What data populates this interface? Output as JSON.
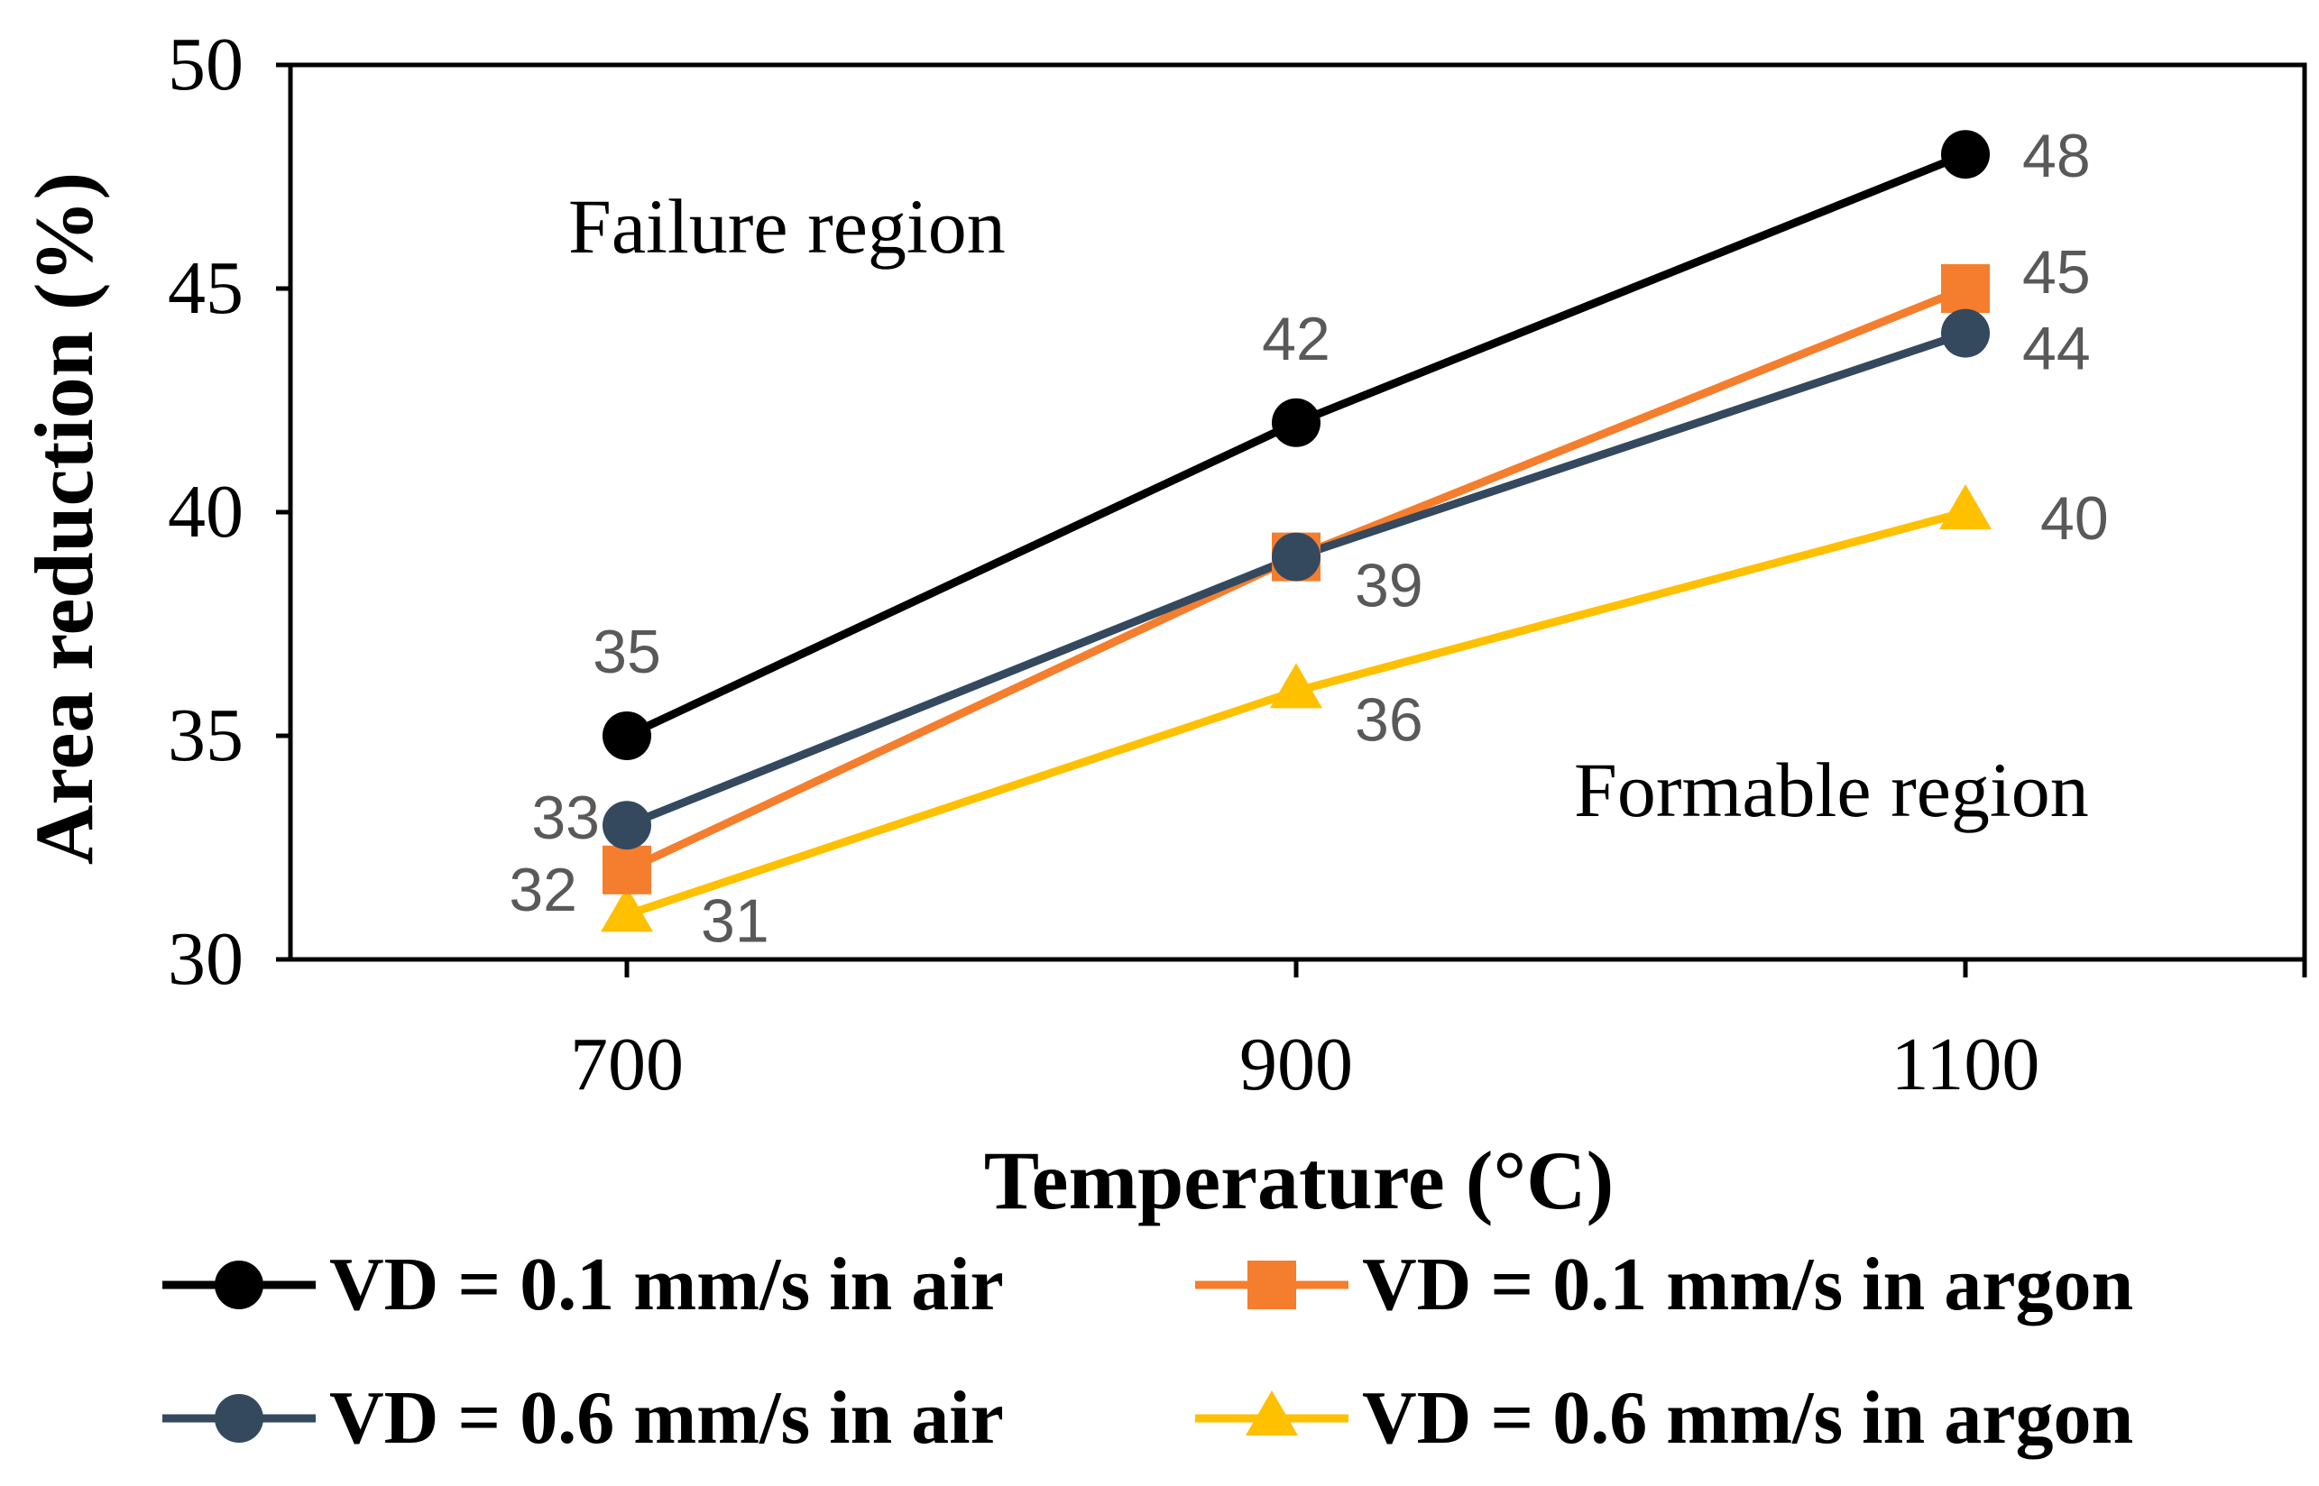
{
  "chart_data": {
    "type": "line",
    "title": "",
    "xlabel": "Temperature (°C)",
    "ylabel": "Area reduction (%)",
    "categories": [
      "700",
      "900",
      "1100"
    ],
    "ylim": [
      30,
      50
    ],
    "yticks": [
      30,
      35,
      40,
      45,
      50
    ],
    "grid": false,
    "legend_position": "bottom",
    "series": [
      {
        "name": "VD = 0.1 mm/s in air",
        "values": [
          35,
          42,
          48
        ],
        "color": "#000000",
        "marker": "circle",
        "labels": [
          "35",
          "42",
          "48"
        ]
      },
      {
        "name": "VD = 0.1 mm/s in argon",
        "values": [
          32,
          39,
          45
        ],
        "color": "#F47E2E",
        "marker": "square",
        "labels": [
          "32",
          "",
          "45"
        ]
      },
      {
        "name": "VD = 0.6 mm/s in air",
        "values": [
          33,
          39,
          44
        ],
        "color": "#34495E",
        "marker": "circle",
        "labels": [
          "33",
          "39",
          "44"
        ]
      },
      {
        "name": "VD = 0.6 mm/s in argon",
        "values": [
          31,
          36,
          40
        ],
        "color": "#FFC000",
        "marker": "triangle",
        "labels": [
          "31",
          "36",
          "40"
        ]
      }
    ],
    "annotations": [
      "Failure region",
      "Formable region"
    ],
    "data_label_color": "#595959"
  }
}
